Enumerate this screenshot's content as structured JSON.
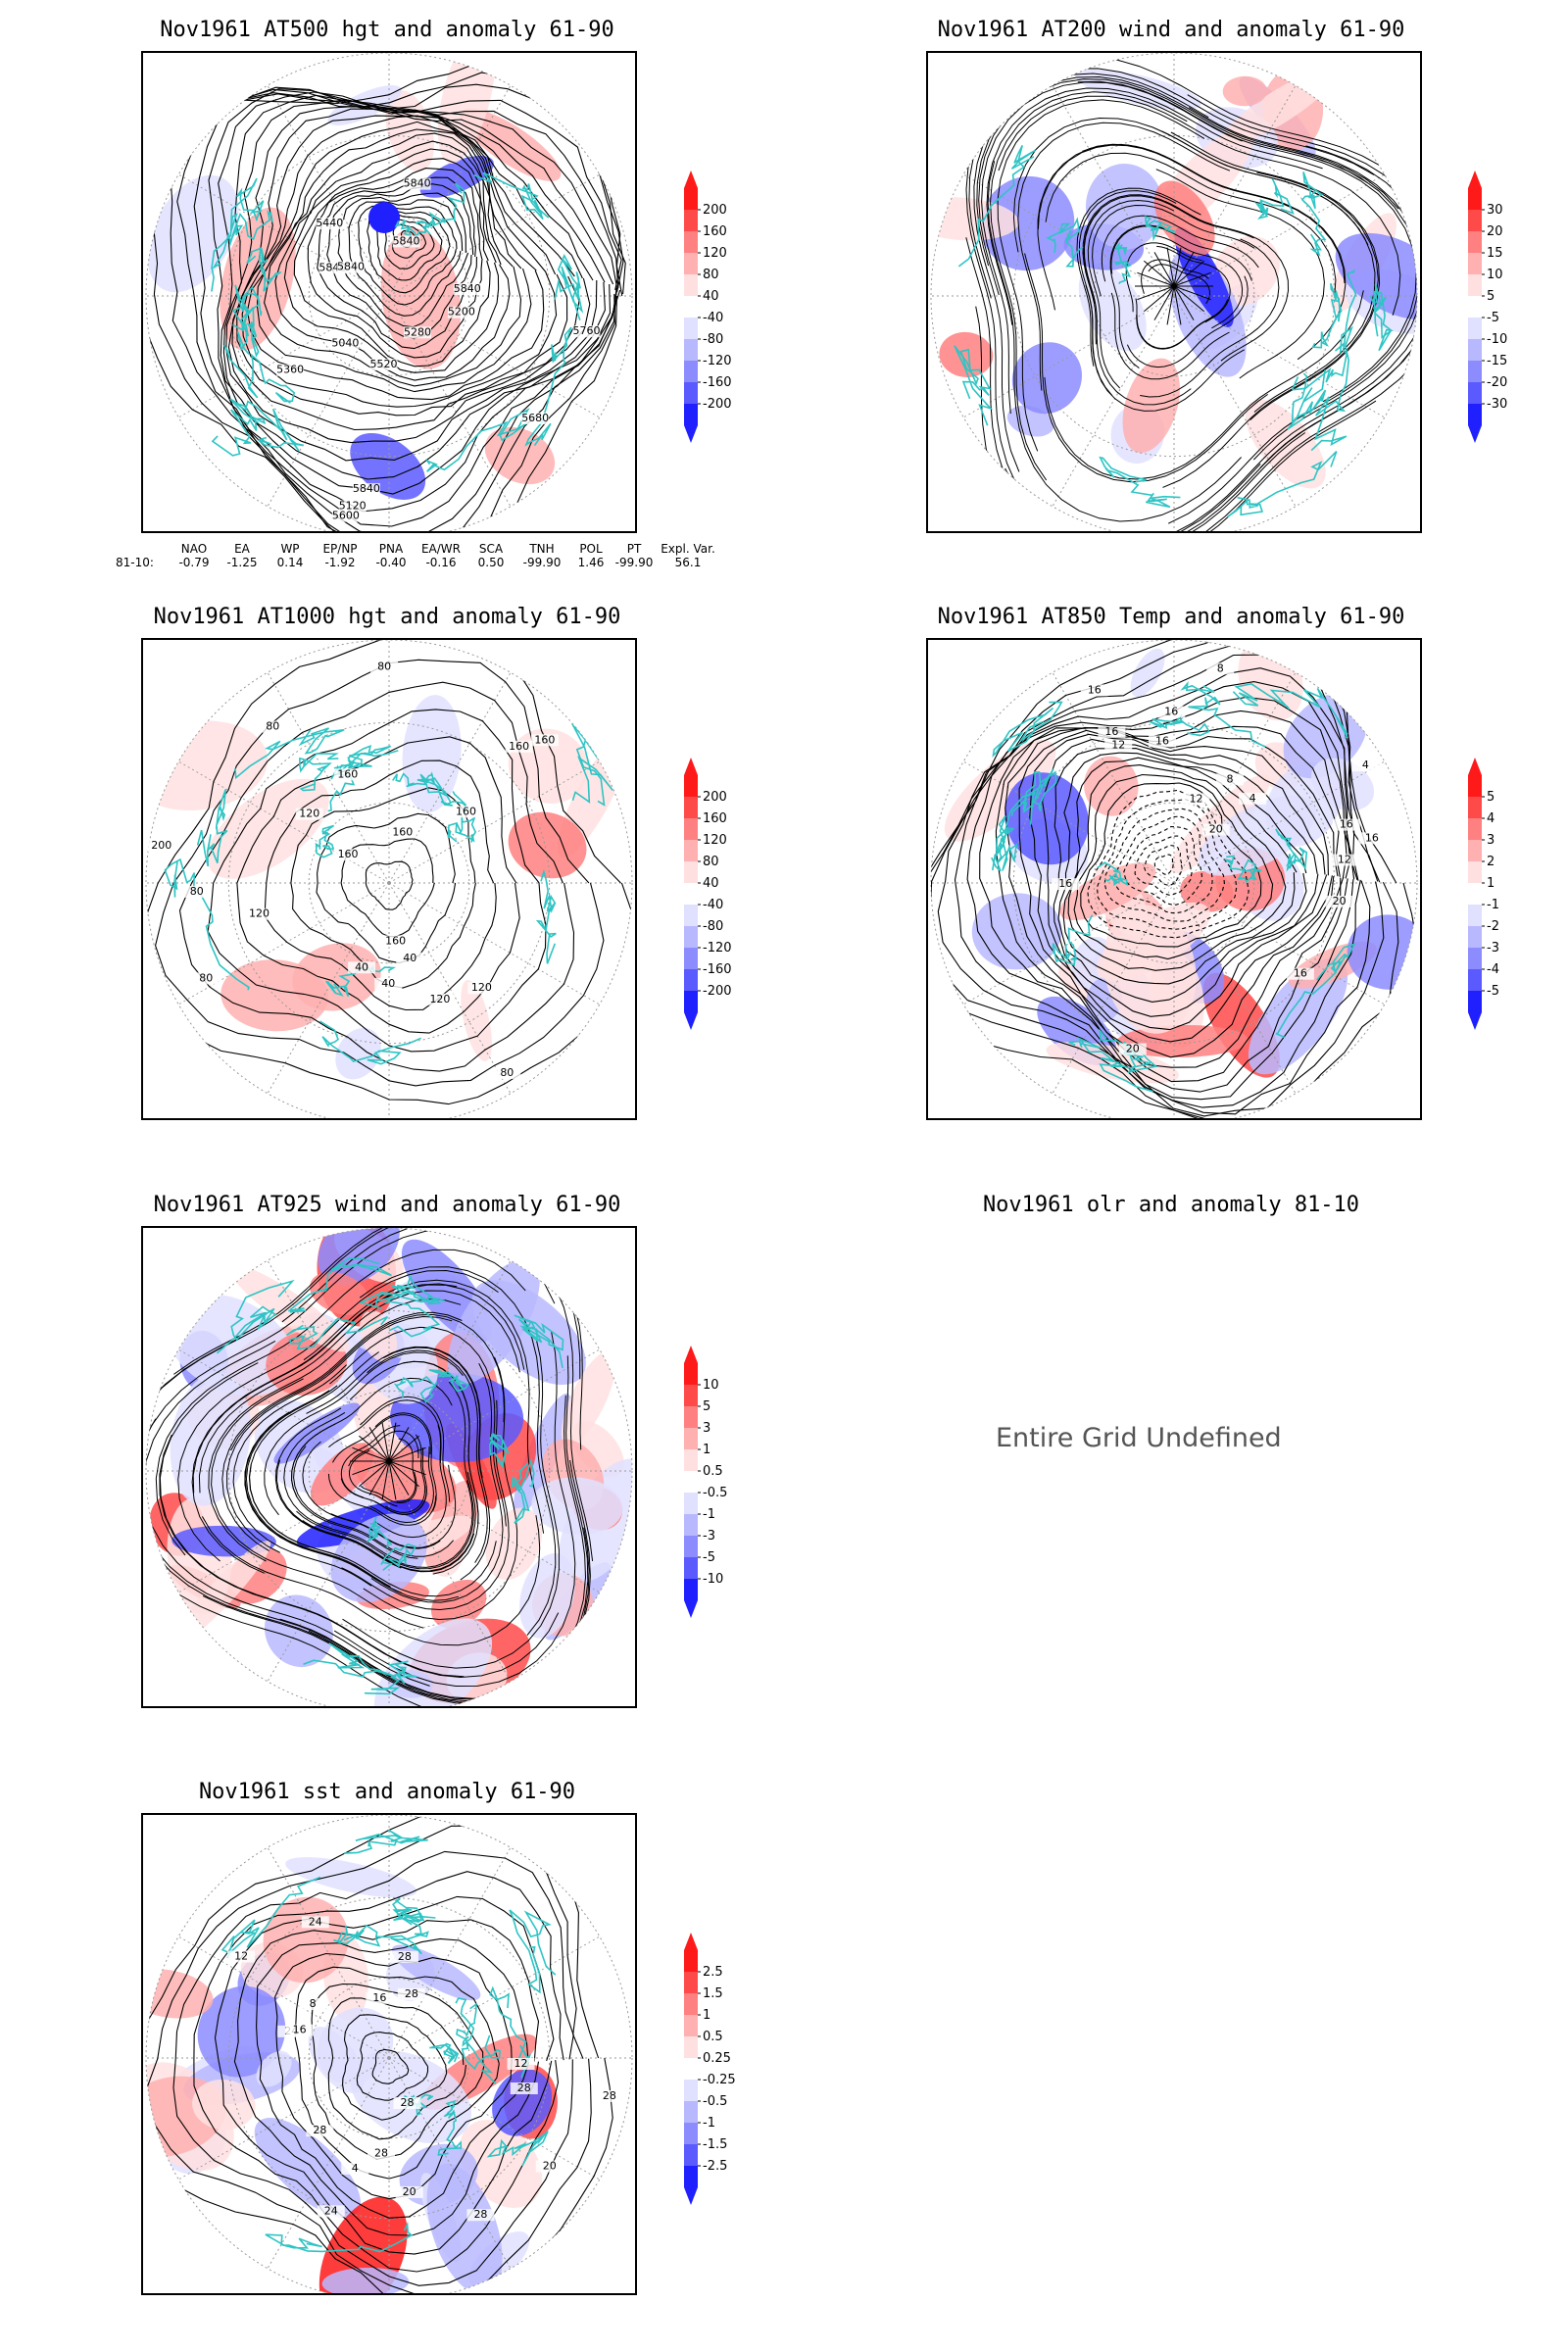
{
  "colors": {
    "coast": "#2fc4c4",
    "contour": "#000000",
    "pos_scale": [
      "#ffe0e0",
      "#ffb0b0",
      "#ff8080",
      "#ff4a4a",
      "#ff1a1a"
    ],
    "neg_scale": [
      "#e0e0ff",
      "#b8b8ff",
      "#8c8cff",
      "#5a5aff",
      "#2020ff"
    ]
  },
  "panels": [
    {
      "id": "at500",
      "title": "Nov1961 AT500 hgt and anomaly 61-90",
      "colorbar_labels": [
        "200",
        "160",
        "120",
        "80",
        "40",
        "-40",
        "-80",
        "-120",
        "-160",
        "-200"
      ],
      "contour_labels": [
        "5840",
        "5840",
        "5840",
        "5040",
        "5120",
        "5200",
        "5280",
        "5360",
        "5440",
        "5520",
        "5600",
        "5680",
        "5760",
        "5840",
        "5840",
        "5840"
      ]
    },
    {
      "id": "at200",
      "title": "Nov1961 AT200 wind and anomaly 61-90",
      "colorbar_labels": [
        "30",
        "20",
        "15",
        "10",
        "5",
        "-5",
        "-10",
        "-15",
        "-20",
        "-30"
      ],
      "contour_labels": []
    },
    {
      "id": "at1000",
      "title": "Nov1961 AT1000 hgt and anomaly 61-90",
      "colorbar_labels": [
        "200",
        "160",
        "120",
        "80",
        "40",
        "-40",
        "-80",
        "-120",
        "-160",
        "-200"
      ],
      "contour_labels": [
        "80",
        "120",
        "160",
        "80",
        "160",
        "40",
        "40",
        "160",
        "200",
        "120",
        "40",
        "80",
        "160",
        "160",
        "120",
        "160",
        "120",
        "80",
        "80",
        "160"
      ]
    },
    {
      "id": "at850",
      "title": "Nov1961 AT850 Temp and anomaly 61-90",
      "colorbar_labels": [
        "5",
        "4",
        "3",
        "2",
        "1",
        "-1",
        "-2",
        "-3",
        "-4",
        "-5"
      ],
      "contour_labels": [
        "16",
        "12",
        "8",
        "16",
        "16",
        "12",
        "4",
        "16",
        "16",
        "8",
        "16",
        "12",
        "20",
        "16",
        "20",
        "4",
        "20",
        "16"
      ]
    },
    {
      "id": "at925",
      "title": "Nov1961 AT925 wind and anomaly 61-90",
      "colorbar_labels": [
        "10",
        "5",
        "3",
        "1",
        "0.5",
        "-0.5",
        "-1",
        "-3",
        "-5",
        "-10"
      ],
      "contour_labels": []
    },
    {
      "id": "olr",
      "title": "Nov1961 olr and anomaly 81-10",
      "message": "Entire Grid Undefined"
    },
    {
      "id": "sst",
      "title": "Nov1961 sst and anomaly 61-90",
      "colorbar_labels": [
        "2.5",
        "1.5",
        "1",
        "0.5",
        "0.25",
        "-0.25",
        "-0.5",
        "-1",
        "-1.5",
        "-2.5"
      ],
      "contour_labels": [
        "28",
        "28",
        "24",
        "24",
        "20",
        "16",
        "12",
        "8",
        "4",
        "24",
        "28",
        "28",
        "12",
        "20",
        "28",
        "28",
        "28",
        "28",
        "16"
      ]
    }
  ],
  "indices": {
    "headers": [
      "NAO",
      "EA",
      "WP",
      "EP/NP",
      "PNA",
      "EA/WR",
      "SCA",
      "TNH",
      "POL",
      "PT",
      "Expl. Var."
    ],
    "row_label": "81-10:",
    "values": [
      "-0.79",
      "-1.25",
      "0.14",
      "-1.92",
      "-0.40",
      "-0.16",
      "0.50",
      "-99.90",
      "1.46",
      "-99.90",
      "56.1"
    ]
  }
}
